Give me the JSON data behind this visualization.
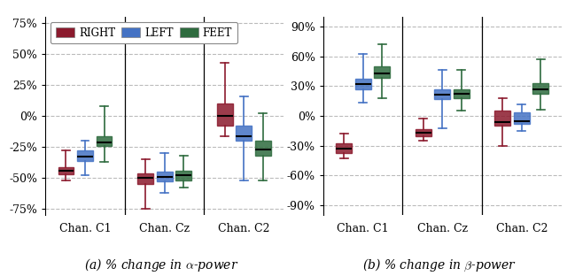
{
  "colors": {
    "right": "#8B1A2D",
    "left": "#4472C4",
    "feet": "#2E6B3E"
  },
  "alpha_panel": {
    "channels": [
      "Chan. C1",
      "Chan. Cz",
      "Chan. C2"
    ],
    "right": [
      {
        "whislo": -52,
        "q1": -47,
        "med": -44,
        "q3": -41,
        "whishi": -28
      },
      {
        "whislo": -75,
        "q1": -55,
        "med": -50,
        "q3": -46,
        "whishi": -35
      },
      {
        "whislo": -16,
        "q1": -8,
        "med": 0,
        "q3": 10,
        "whishi": 43
      }
    ],
    "left": [
      {
        "whislo": -48,
        "q1": -36,
        "med": -33,
        "q3": -28,
        "whishi": -20
      },
      {
        "whislo": -62,
        "q1": -53,
        "med": -49,
        "q3": -45,
        "whishi": -30
      },
      {
        "whislo": -52,
        "q1": -20,
        "med": -16,
        "q3": -8,
        "whishi": 16
      }
    ],
    "feet": [
      {
        "whislo": -37,
        "q1": -24,
        "med": -21,
        "q3": -16,
        "whishi": 8
      },
      {
        "whislo": -58,
        "q1": -52,
        "med": -48,
        "q3": -44,
        "whishi": -32
      },
      {
        "whislo": -52,
        "q1": -32,
        "med": -27,
        "q3": -20,
        "whishi": 2
      }
    ],
    "ylim": [
      -80,
      80
    ],
    "yticks": [
      -75,
      -50,
      -25,
      0,
      25,
      50,
      75
    ],
    "yticklabels": [
      "-75%",
      "-50%",
      "-25%",
      "0%",
      "25%",
      "50%",
      "75%"
    ],
    "caption": "(a) % change in $\\alpha$-power"
  },
  "beta_panel": {
    "channels": [
      "Chan. C1",
      "Chan. Cz",
      "Chan. C2"
    ],
    "right": [
      {
        "whislo": -43,
        "q1": -37,
        "med": -33,
        "q3": -28,
        "whishi": -18
      },
      {
        "whislo": -25,
        "q1": -20,
        "med": -17,
        "q3": -13,
        "whishi": -3
      },
      {
        "whislo": -30,
        "q1": -10,
        "med": -6,
        "q3": 5,
        "whishi": 18
      }
    ],
    "left": [
      {
        "whislo": 13,
        "q1": 27,
        "med": 32,
        "q3": 37,
        "whishi": 62
      },
      {
        "whislo": -12,
        "q1": 17,
        "med": 21,
        "q3": 27,
        "whishi": 46
      },
      {
        "whislo": -15,
        "q1": -8,
        "med": -5,
        "q3": 4,
        "whishi": 12
      }
    ],
    "feet": [
      {
        "whislo": 18,
        "q1": 38,
        "med": 43,
        "q3": 50,
        "whishi": 72
      },
      {
        "whislo": 5,
        "q1": 18,
        "med": 22,
        "q3": 27,
        "whishi": 46
      },
      {
        "whislo": 6,
        "q1": 22,
        "med": 27,
        "q3": 33,
        "whishi": 57
      }
    ],
    "ylim": [
      -100,
      100
    ],
    "yticks": [
      -90,
      -60,
      -30,
      0,
      30,
      60,
      90
    ],
    "yticklabels": [
      "-90%",
      "-60%",
      "-30%",
      "0%",
      "30%",
      "60%",
      "90%"
    ],
    "caption": "(b) % change in $\\beta$-power"
  },
  "legend_labels": [
    "RIGHT",
    "LEFT",
    "FEET"
  ],
  "box_width": 0.2,
  "offsets": [
    -0.24,
    0,
    0.24
  ]
}
